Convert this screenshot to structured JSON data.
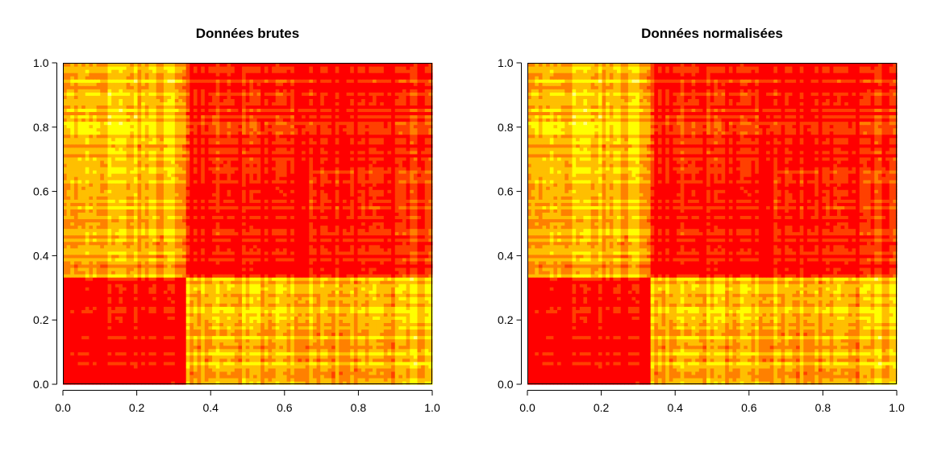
{
  "chart_data": [
    {
      "type": "heatmap",
      "title": "Données brutes",
      "xlabel": "",
      "ylabel": "",
      "xlim": [
        0,
        1
      ],
      "ylim": [
        0,
        1
      ],
      "xticks": [
        "0.0",
        "0.2",
        "0.4",
        "0.6",
        "0.8",
        "1.0"
      ],
      "yticks": [
        "0.0",
        "0.2",
        "0.4",
        "0.6",
        "0.8",
        "1.0"
      ],
      "grid": false,
      "legend": "none",
      "grid_size": 99,
      "color_scale": [
        "#ff0000",
        "#ff4000",
        "#ff8000",
        "#ffbf00",
        "#ffff00",
        "#ffff80"
      ],
      "block_boundaries": [
        0.0,
        0.333,
        0.667,
        1.0
      ],
      "block_levels": [
        [
          0.05,
          0.55,
          0.55
        ],
        [
          0.55,
          0.08,
          0.15
        ],
        [
          0.6,
          0.15,
          0.12
        ]
      ],
      "noise": 0.2
    },
    {
      "type": "heatmap",
      "title": "Données normalisées",
      "xlabel": "",
      "ylabel": "",
      "xlim": [
        0,
        1
      ],
      "ylim": [
        0,
        1
      ],
      "xticks": [
        "0.0",
        "0.2",
        "0.4",
        "0.6",
        "0.8",
        "1.0"
      ],
      "yticks": [
        "0.0",
        "0.2",
        "0.4",
        "0.6",
        "0.8",
        "1.0"
      ],
      "grid": false,
      "legend": "none",
      "grid_size": 99,
      "color_scale": [
        "#ff0000",
        "#ff4000",
        "#ff8000",
        "#ffbf00",
        "#ffff00",
        "#ffff80"
      ],
      "block_boundaries": [
        0.0,
        0.333,
        0.667,
        1.0
      ],
      "block_levels": [
        [
          0.05,
          0.55,
          0.55
        ],
        [
          0.55,
          0.08,
          0.15
        ],
        [
          0.6,
          0.15,
          0.12
        ]
      ],
      "noise": 0.2
    }
  ]
}
